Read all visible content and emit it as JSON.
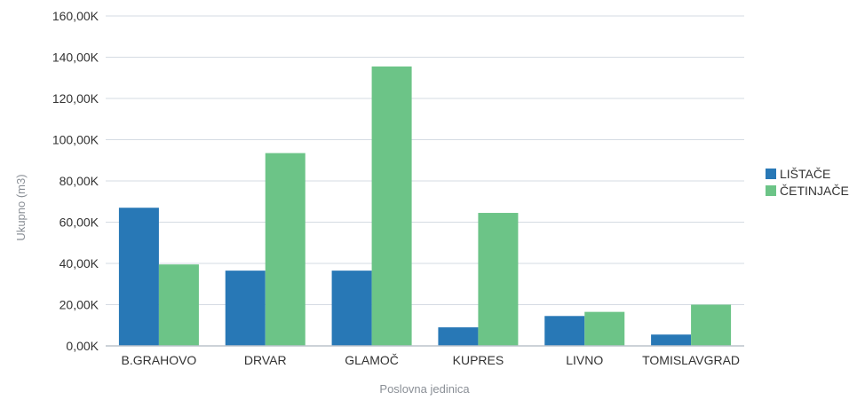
{
  "chart_data": {
    "type": "bar",
    "title": "",
    "xlabel": "Poslovna jedinica",
    "ylabel": "Ukupno (m3)",
    "categories": [
      "B.GRAHOVO",
      "DRVAR",
      "GLAMOČ",
      "KUPRES",
      "LIVNO",
      "TOMISLAVGRAD"
    ],
    "series": [
      {
        "name": "LIŠTAČE",
        "color": "#2878b6",
        "values": [
          67000,
          36500,
          36500,
          9000,
          14500,
          5500
        ]
      },
      {
        "name": "ČETINJAČE",
        "color": "#6cc487",
        "values": [
          39500,
          93500,
          135500,
          64500,
          16500,
          20000
        ]
      }
    ],
    "ylim": [
      0,
      160000
    ],
    "yticks": [
      "0,00K",
      "20,00K",
      "40,00K",
      "60,00K",
      "80,00K",
      "100,00K",
      "120,00K",
      "140,00K",
      "160,00K"
    ],
    "grid": true,
    "legend_position": "right"
  }
}
